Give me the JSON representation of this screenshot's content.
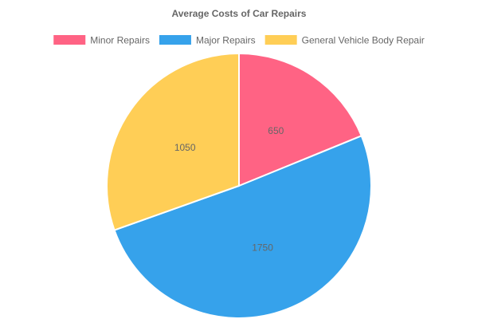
{
  "chart_data": {
    "type": "pie",
    "title": "Average Costs of Car Repairs",
    "legend_position": "top",
    "categories": [
      "Minor Repairs",
      "Major Repairs",
      "General Vehicle Body Repair"
    ],
    "values": [
      650,
      1750,
      1050
    ],
    "colors": [
      "#ff6384",
      "#36a2eb",
      "#ffce56"
    ]
  }
}
